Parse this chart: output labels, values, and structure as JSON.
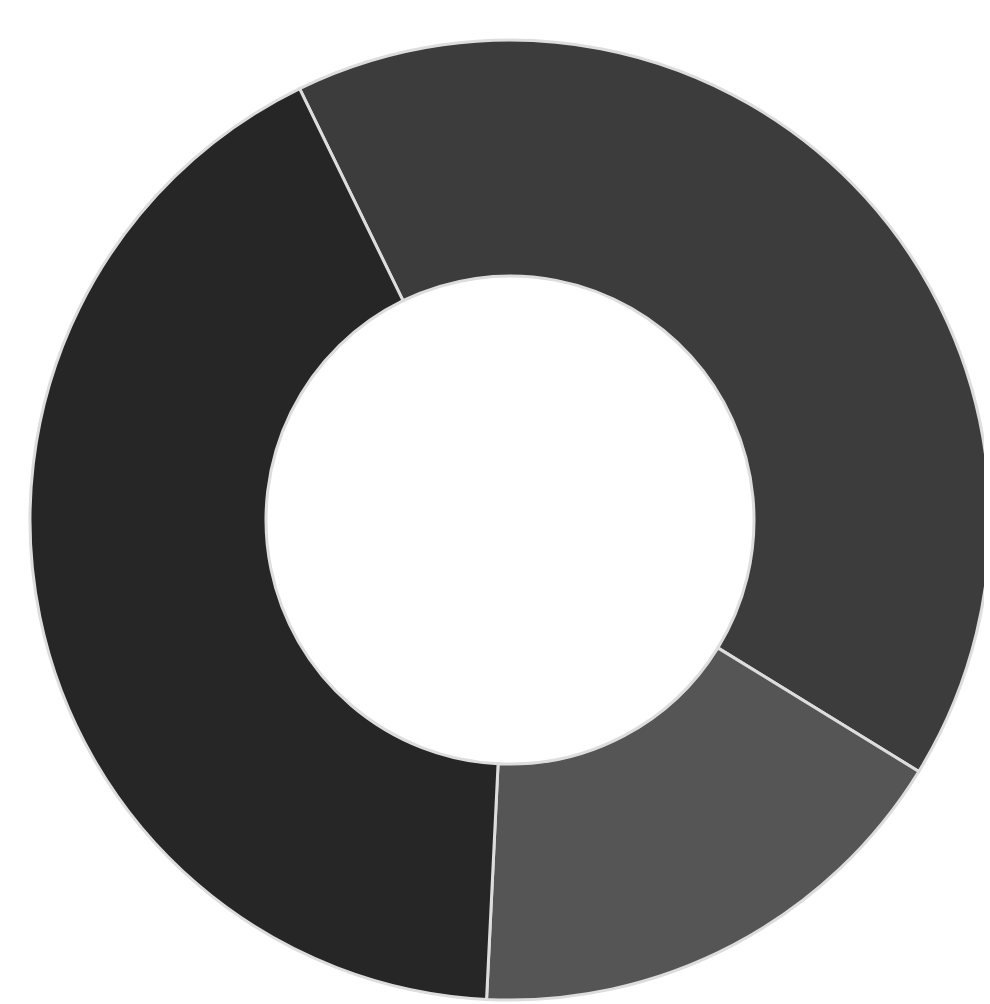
{
  "chart_data": {
    "type": "donut",
    "categories": [
      null,
      null,
      null
    ],
    "values": [
      41,
      17,
      42
    ],
    "colors": [
      "#3c3c3c",
      "#555555",
      "#262626"
    ]
  }
}
